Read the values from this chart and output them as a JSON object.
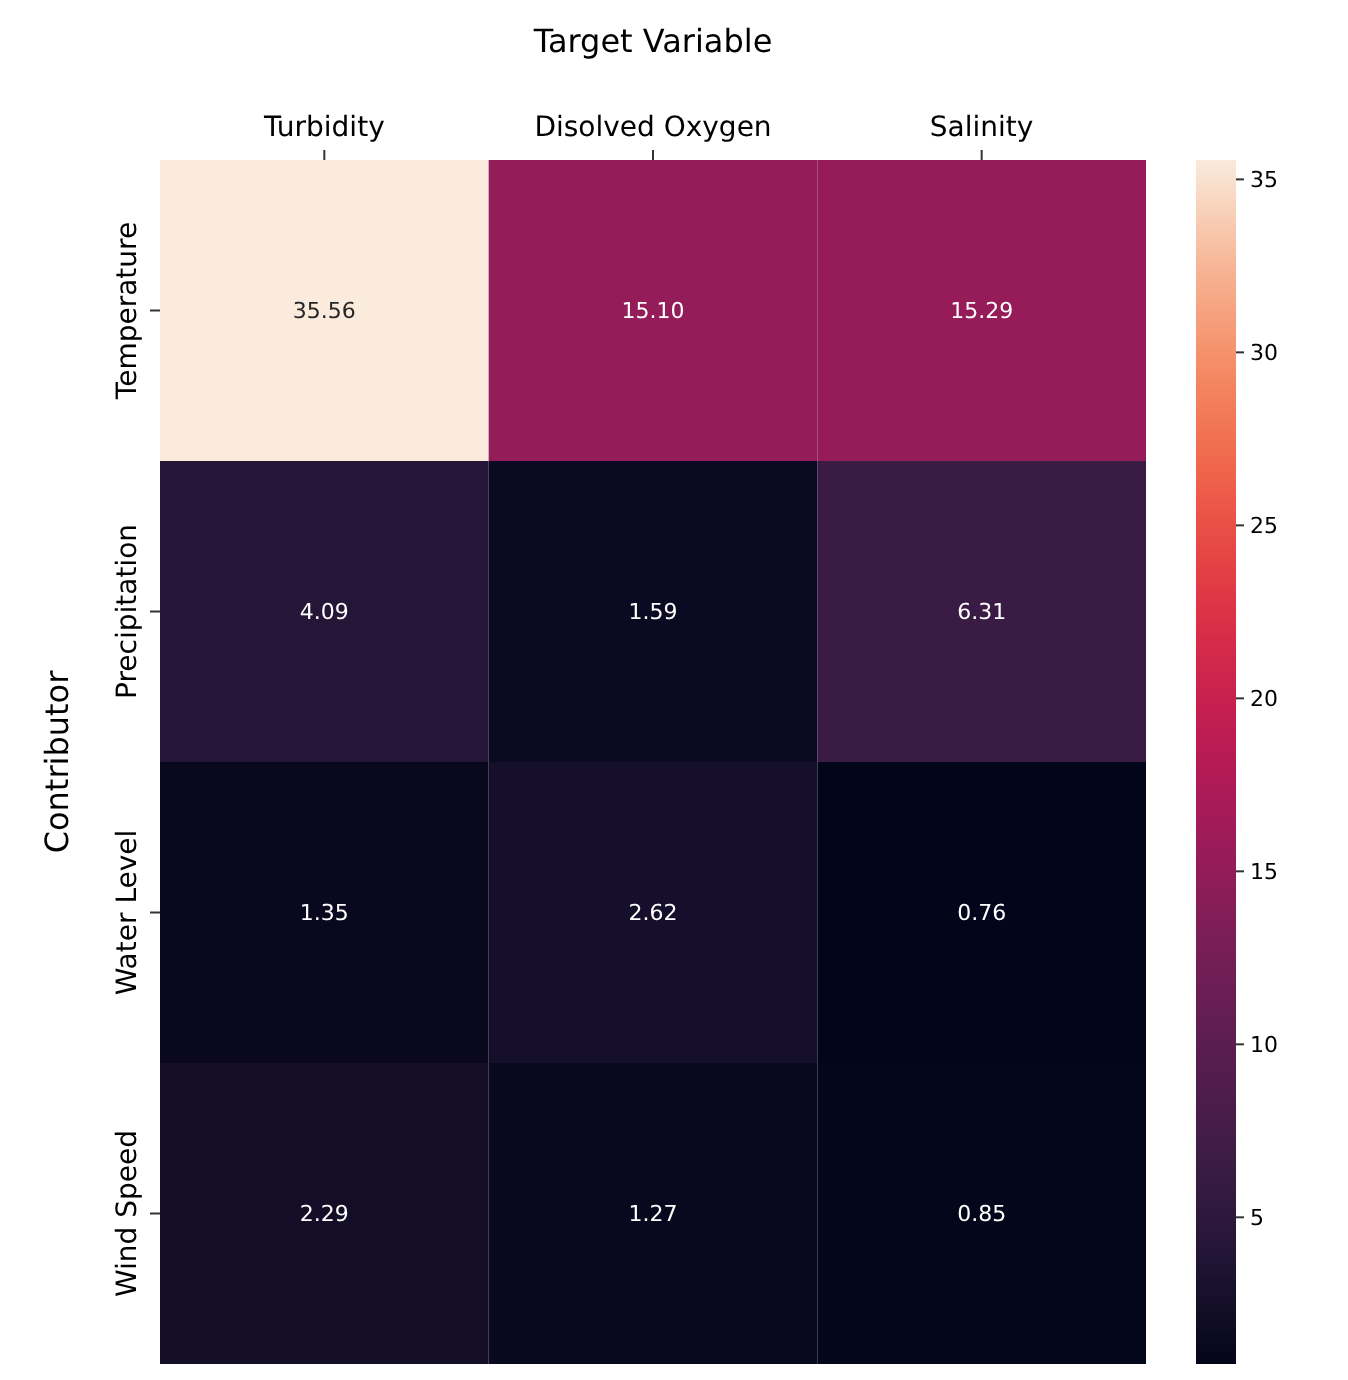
{
  "chart_data": {
    "type": "heatmap",
    "title": "Target Variable",
    "ylabel": "Contributor",
    "categories": [
      "Turbidity",
      "Disolved Oxygen",
      "Salinity"
    ],
    "y_categories": [
      "Temperature",
      "Precipitation",
      "Water Level",
      "Wind Speed"
    ],
    "cells": [
      [
        35.56,
        15.1,
        15.29
      ],
      [
        4.09,
        1.59,
        6.31
      ],
      [
        1.35,
        2.62,
        0.76
      ],
      [
        2.29,
        1.27,
        0.85
      ]
    ],
    "cell_labels": [
      [
        "35.56",
        "15.10",
        "15.29"
      ],
      [
        "4.09",
        "1.59",
        "6.31"
      ],
      [
        "1.35",
        "2.62",
        "0.76"
      ],
      [
        "2.29",
        "1.27",
        "0.85"
      ]
    ],
    "clim": [
      0.76,
      35.56
    ],
    "cticks": [
      5,
      10,
      15,
      20,
      25,
      30,
      35
    ]
  }
}
